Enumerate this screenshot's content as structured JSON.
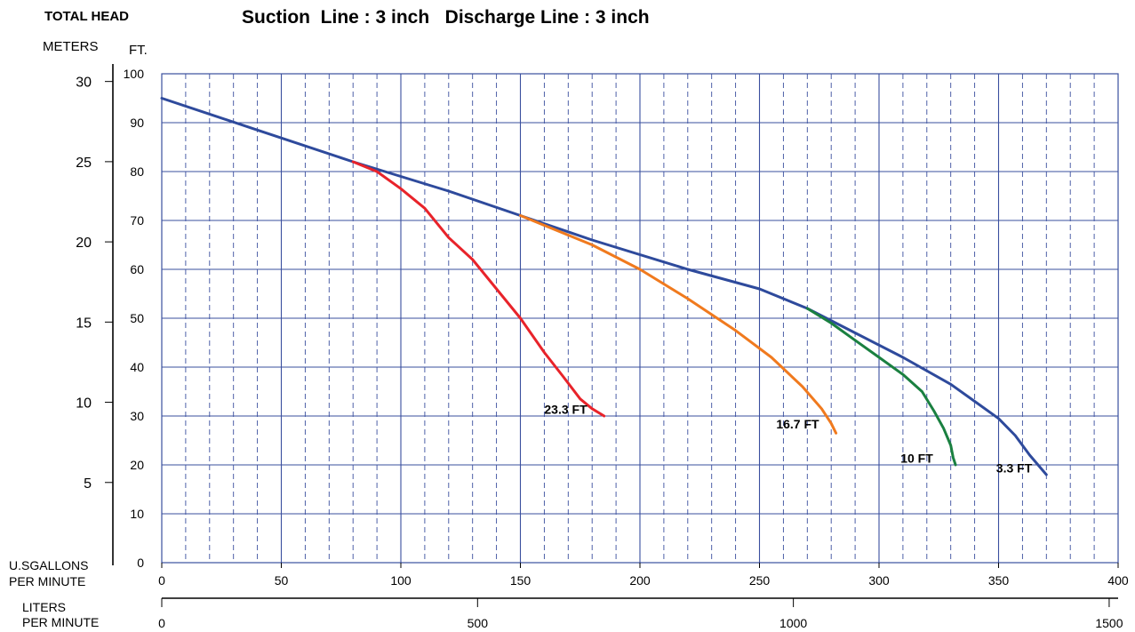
{
  "chart_data": {
    "type": "line",
    "title": "Suction  Line : 3 inch   Discharge Line : 3 inch",
    "left_axis_title": "TOTAL HEAD",
    "meters_label": "METERS",
    "ft_label": "FT.",
    "x_label_top": "U.SGALLONS",
    "x_label_bottom": "PER MINUTE",
    "x2_label_top": "LITERS",
    "x2_label_bottom": "PER MINUTE",
    "xlim": [
      0,
      400
    ],
    "ylim": [
      0,
      100
    ],
    "x_ticks": [
      0,
      50,
      100,
      150,
      200,
      250,
      300,
      350,
      400
    ],
    "y_ticks": [
      0,
      10,
      20,
      30,
      40,
      50,
      60,
      70,
      80,
      90,
      100
    ],
    "meter_ticks": [
      5,
      10,
      15,
      20,
      25,
      30
    ],
    "liter_ticks": [
      0,
      500,
      1000,
      1500
    ],
    "grid": true,
    "series": [
      {
        "name": "3.3 FT",
        "color": "#2e4a9c",
        "points": [
          [
            0,
            95
          ],
          [
            40,
            88.5
          ],
          [
            80,
            82
          ],
          [
            120,
            76
          ],
          [
            150,
            71
          ],
          [
            180,
            66
          ],
          [
            220,
            60
          ],
          [
            250,
            56
          ],
          [
            270,
            52
          ],
          [
            290,
            47
          ],
          [
            310,
            42
          ],
          [
            330,
            36.5
          ],
          [
            340,
            33
          ],
          [
            350,
            29.5
          ],
          [
            357,
            26
          ],
          [
            363,
            22
          ],
          [
            370,
            18
          ]
        ]
      },
      {
        "name": "10 FT",
        "color": "#1a8040",
        "points": [
          [
            270,
            52
          ],
          [
            280,
            49
          ],
          [
            290,
            45.5
          ],
          [
            300,
            42
          ],
          [
            310,
            38.5
          ],
          [
            318,
            35
          ],
          [
            323,
            31
          ],
          [
            327,
            27.5
          ],
          [
            330,
            24
          ],
          [
            331,
            21.5
          ],
          [
            332,
            20
          ]
        ]
      },
      {
        "name": "16.7 FT",
        "color": "#f07a1e",
        "points": [
          [
            150,
            71
          ],
          [
            165,
            68
          ],
          [
            180,
            65
          ],
          [
            200,
            60
          ],
          [
            220,
            54
          ],
          [
            240,
            47.5
          ],
          [
            255,
            42
          ],
          [
            268,
            36
          ],
          [
            276,
            31.5
          ],
          [
            280,
            28.5
          ],
          [
            282,
            26.5
          ]
        ]
      },
      {
        "name": "23.3 FT",
        "color": "#e8232a",
        "points": [
          [
            80,
            82
          ],
          [
            90,
            80
          ],
          [
            100,
            76.5
          ],
          [
            110,
            72.5
          ],
          [
            120,
            66.5
          ],
          [
            130,
            62
          ],
          [
            140,
            56
          ],
          [
            150,
            50
          ],
          [
            160,
            43
          ],
          [
            168,
            38
          ],
          [
            175,
            33.5
          ],
          [
            180,
            31.5
          ],
          [
            185,
            30
          ]
        ]
      }
    ],
    "curve_labels": [
      {
        "text": "23.3 FT",
        "x": 160,
        "y": 30.5
      },
      {
        "text": "16.7 FT",
        "x": 257,
        "y": 27.5
      },
      {
        "text": "10 FT",
        "x": 309,
        "y": 20.5
      },
      {
        "text": "3.3 FT",
        "x": 349,
        "y": 18.5
      }
    ]
  }
}
